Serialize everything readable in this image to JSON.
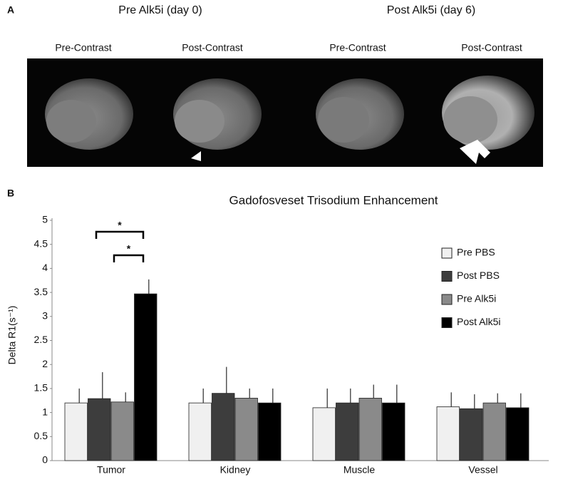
{
  "panel_a": {
    "label": "A",
    "groups": [
      {
        "title": "Pre Alk5i (day 0)",
        "images": [
          "Pre-Contrast",
          "Post-Contrast"
        ]
      },
      {
        "title": "Post Alk5i (day 6)",
        "images": [
          "Pre-Contrast",
          "Post-Contrast"
        ]
      }
    ]
  },
  "panel_b_label": "B",
  "chart_data": {
    "type": "bar",
    "title": "Gadofosveset Trisodium Enhancement",
    "y_label": "Delta R1(s⁻¹)",
    "categories": [
      "Tumor",
      "Kidney",
      "Muscle",
      "Vessel"
    ],
    "series": [
      {
        "name": "Pre PBS",
        "color": "#f0f0f0",
        "values": [
          1.2,
          1.2,
          1.1,
          1.12
        ],
        "errors": [
          0.3,
          0.3,
          0.4,
          0.3
        ]
      },
      {
        "name": "Post PBS",
        "color": "#3d3d3d",
        "values": [
          1.29,
          1.4,
          1.2,
          1.08
        ],
        "errors": [
          0.55,
          0.55,
          0.3,
          0.3
        ]
      },
      {
        "name": "Pre Alk5i",
        "color": "#8a8a8a",
        "values": [
          1.22,
          1.3,
          1.3,
          1.2
        ],
        "errors": [
          0.2,
          0.2,
          0.28,
          0.2
        ]
      },
      {
        "name": "Post Alk5i",
        "color": "#000000",
        "values": [
          3.47,
          1.2,
          1.2,
          1.1
        ],
        "errors": [
          0.3,
          0.3,
          0.38,
          0.3
        ]
      }
    ],
    "ylim": [
      0,
      5
    ],
    "yticks": [
      0,
      0.5,
      1,
      1.5,
      2,
      2.5,
      3,
      3.5,
      4,
      4.5,
      5
    ],
    "grid": false,
    "legend": "right",
    "annotations": [
      "*",
      "*"
    ]
  }
}
